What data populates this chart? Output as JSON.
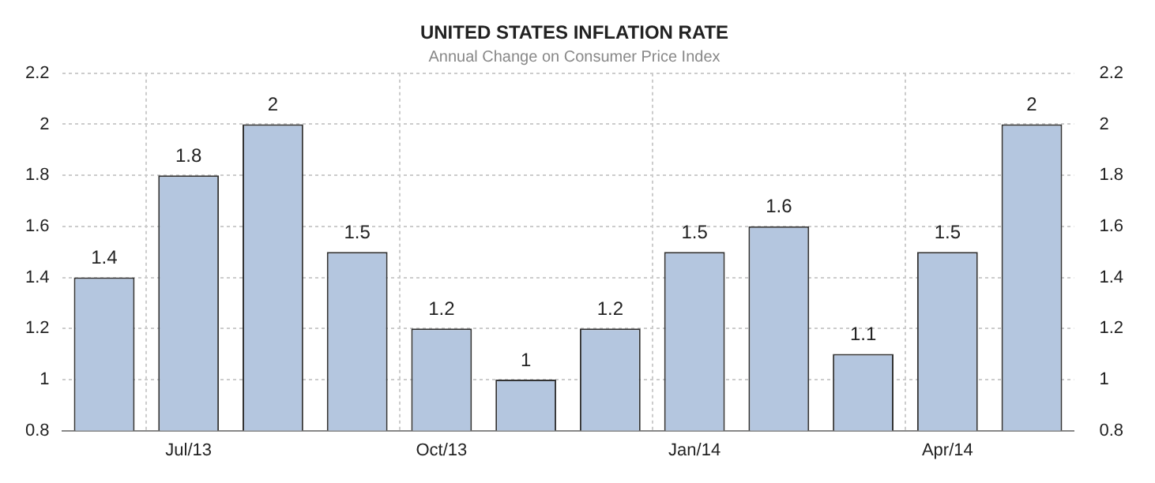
{
  "chart_data": {
    "type": "bar",
    "title": "UNITED STATES INFLATION RATE",
    "subtitle": "Annual Change on Consumer Price Index",
    "categories": [
      null,
      "Jul/13",
      null,
      null,
      "Oct/13",
      null,
      null,
      "Jan/14",
      null,
      null,
      "Apr/14",
      null
    ],
    "values": [
      1.4,
      1.8,
      2,
      1.5,
      1.2,
      1,
      1.2,
      1.5,
      1.6,
      1.1,
      1.5,
      2
    ],
    "color": "#b4c6df",
    "ylim": [
      0.8,
      2.2
    ],
    "yticks": [
      0.8,
      1,
      1.2,
      1.4,
      1.6,
      1.8,
      2,
      2.2
    ],
    "y2lim": [
      0.8,
      2.2
    ],
    "y2ticks": [
      0.8,
      1,
      1.2,
      1.4,
      1.6,
      1.8,
      2,
      2.2
    ],
    "grid": true,
    "data_labels": true,
    "legend": false
  }
}
